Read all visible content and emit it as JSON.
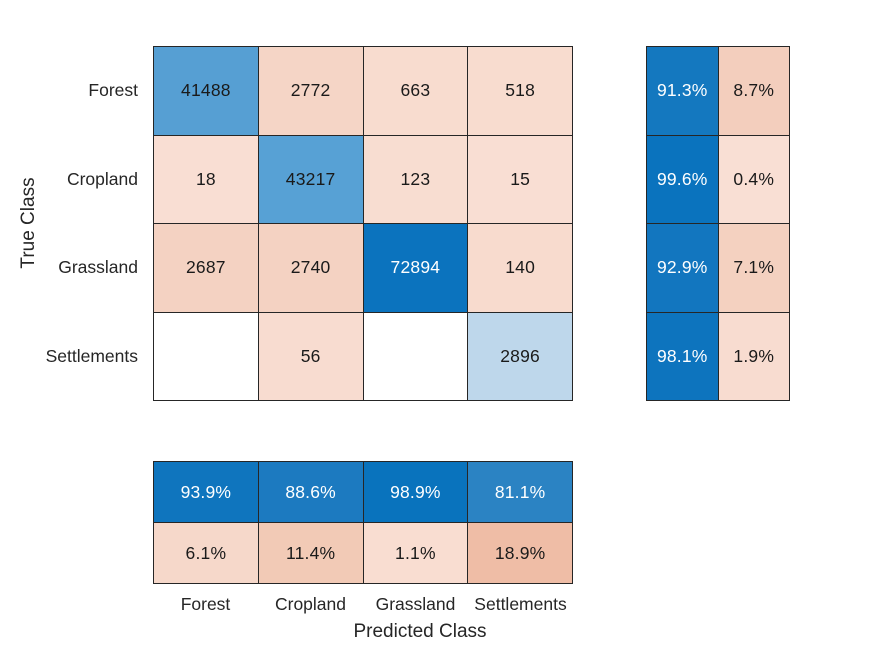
{
  "figure": {
    "background": "#ffffff",
    "grid_line_color": "#262626",
    "label_color": "#262626",
    "cell_text_dark": "#1a1a1a",
    "cell_text_light": "#ffffff"
  },
  "chart_data": {
    "type": "heatmap",
    "subtype": "confusion_matrix",
    "title": "",
    "xlabel": "Predicted Class",
    "ylabel": "True Class",
    "classes": [
      "Forest",
      "Cropland",
      "Grassland",
      "Settlements"
    ],
    "matrix": [
      [
        41488,
        2772,
        663,
        518
      ],
      [
        18,
        43217,
        123,
        15
      ],
      [
        2687,
        2740,
        72894,
        140
      ],
      [
        null,
        56,
        null,
        2896
      ]
    ],
    "matrix_display": [
      [
        "41488",
        "2772",
        "663",
        "518"
      ],
      [
        "18",
        "43217",
        "123",
        "15"
      ],
      [
        "2687",
        "2740",
        "72894",
        "140"
      ],
      [
        "",
        "56",
        "",
        "2896"
      ]
    ],
    "matrix_bg": [
      [
        "#569fd3",
        "#f5d5c6",
        "#f8dccf",
        "#f8dccf"
      ],
      [
        "#f9ded3",
        "#57a1d5",
        "#f8ddd1",
        "#f9ded3"
      ],
      [
        "#f4d2c2",
        "#f4d2c2",
        "#0b73be",
        "#f8dbce"
      ],
      [
        "#ffffff",
        "#f8dcd0",
        "#ffffff",
        "#bed7eb"
      ]
    ],
    "row_summary": [
      [
        "91.3%",
        "8.7%"
      ],
      [
        "99.6%",
        "0.4%"
      ],
      [
        "92.9%",
        "7.1%"
      ],
      [
        "98.1%",
        "1.9%"
      ]
    ],
    "row_summary_bg": [
      [
        "#1478bf",
        "#f3cebd"
      ],
      [
        "#0a73be",
        "#f9dfd4"
      ],
      [
        "#1276bf",
        "#f4d1c0"
      ],
      [
        "#0d74be",
        "#f8dcd0"
      ]
    ],
    "col_summary": [
      [
        "93.9%",
        "88.6%",
        "98.9%",
        "81.1%"
      ],
      [
        "6.1%",
        "11.4%",
        "1.1%",
        "18.9%"
      ]
    ],
    "col_summary_bg": [
      [
        "#0f75be",
        "#1c7ac0",
        "#0973bd",
        "#2b83c3"
      ],
      [
        "#f6d8ca",
        "#f2cab6",
        "#f9ddd1",
        "#efbda6"
      ]
    ],
    "legend_position": "none",
    "grid": "on"
  }
}
